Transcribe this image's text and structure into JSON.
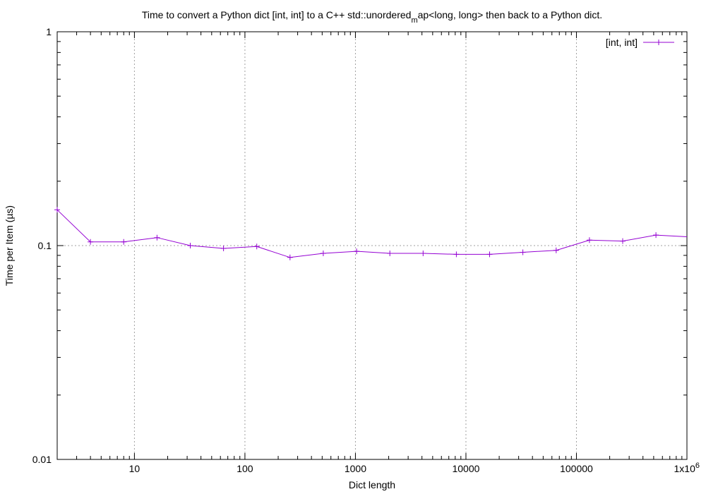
{
  "chart_data": {
    "type": "line",
    "title": {
      "prefix": "Time to convert a Python dict [int, int] to a C++ std::unordered",
      "subscript": "m",
      "suffix": "ap<long, long> then back to a Python dict."
    },
    "xlabel": "Dict length",
    "ylabel": "Time per Item (µs)",
    "x_scale": "log",
    "y_scale": "log",
    "xlim": [
      2,
      1000000
    ],
    "ylim": [
      0.01,
      1
    ],
    "x_ticks": [
      {
        "value": 10,
        "label": "10"
      },
      {
        "value": 100,
        "label": "100"
      },
      {
        "value": 1000,
        "label": "1000"
      },
      {
        "value": 10000,
        "label": "10000"
      },
      {
        "value": 100000,
        "label": "100000"
      }
    ],
    "x_end_label": {
      "base": "1x10",
      "exponent": "6"
    },
    "y_ticks": [
      {
        "value": 1,
        "label": "1"
      },
      {
        "value": 0.1,
        "label": "0.1"
      },
      {
        "value": 0.01,
        "label": "0.01"
      }
    ],
    "grid": true,
    "legend": "top-right",
    "series": [
      {
        "name": "[int, int]",
        "color": "#9400d3",
        "marker": "plus",
        "x": [
          2,
          4,
          8,
          16,
          32,
          64,
          128,
          256,
          512,
          1024,
          2048,
          4096,
          8192,
          16384,
          32768,
          65536,
          131072,
          262144,
          524288,
          1048576
        ],
        "y": [
          0.147,
          0.104,
          0.104,
          0.109,
          0.1,
          0.097,
          0.099,
          0.088,
          0.092,
          0.094,
          0.092,
          0.092,
          0.091,
          0.091,
          0.093,
          0.095,
          0.106,
          0.105,
          0.112,
          0.11
        ]
      }
    ]
  }
}
